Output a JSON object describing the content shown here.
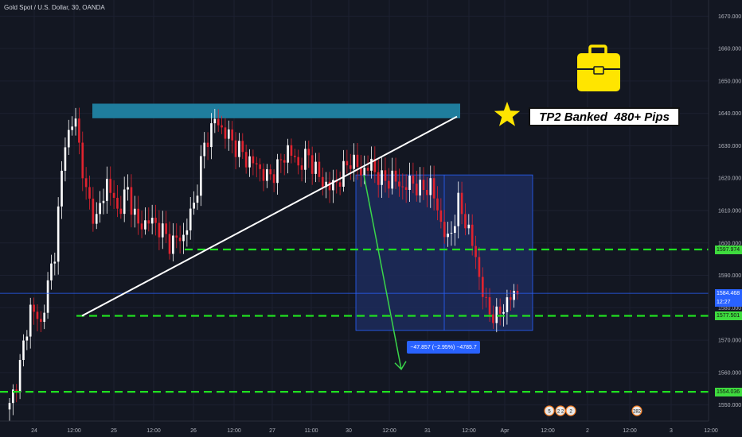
{
  "header": {
    "title": "Gold Spot / U.S. Dollar, 30, OANDA"
  },
  "annotation": {
    "tp_text": "TP2 Banked  480+ Pips",
    "measure_text": "−47.857 (−2.95%) −4785.7"
  },
  "price_labels": [
    {
      "value": 1597.974,
      "text": "1597.974",
      "kind": "green"
    },
    {
      "value": 1584.468,
      "text": "1584.468",
      "kind": "blue"
    },
    {
      "value": 1577.501,
      "text": "1577.501",
      "kind": "green"
    },
    {
      "value": 1554.036,
      "text": "1554.036",
      "kind": "green"
    }
  ],
  "countdown": "12:27",
  "event_badges": [
    {
      "label": "5"
    },
    {
      "label": "2 2"
    },
    {
      "label": "2"
    },
    {
      "label": "282"
    }
  ],
  "colors": {
    "background": "#131722",
    "bull": "#ffffff",
    "bear": "#e0232f",
    "zone": "#1f7d9d",
    "measure_box": "#1d2c5c",
    "support_line": "#20e020",
    "trend_line": "#ffffff",
    "arrow": "#3ad64a",
    "star": "#ffe500",
    "briefcase": "#ffe500"
  },
  "chart_data": {
    "type": "candlestick",
    "symbol": "Gold Spot / U.S. Dollar",
    "timeframe": "30",
    "source": "OANDA",
    "ylim": [
      1545,
      1675
    ],
    "y_ticks": [
      1550,
      1560,
      1570,
      1580,
      1590,
      1600,
      1610,
      1620,
      1630,
      1640,
      1650,
      1660,
      1670
    ],
    "x_ticks": [
      "24",
      "12:00",
      "25",
      "12:00",
      "26",
      "12:00",
      "27",
      "11:00",
      "30",
      "12:00",
      "31",
      "12:00",
      "Apr",
      "12:00",
      "2",
      "12:00",
      "3",
      "12:00"
    ],
    "horizontal_levels": [
      1597.974,
      1577.501,
      1554.036
    ],
    "last_price": 1584.468,
    "resistance_zone": [
      1638.5,
      1643
    ],
    "measured_move": {
      "change": -47.857,
      "percent": -2.95,
      "pips": -4785.7
    },
    "anchors": [
      [
        0,
        1549
      ],
      [
        3,
        1562
      ],
      [
        6,
        1580
      ],
      [
        9,
        1575
      ],
      [
        13,
        1598
      ],
      [
        16,
        1632
      ],
      [
        19,
        1638
      ],
      [
        22,
        1615
      ],
      [
        25,
        1607
      ],
      [
        28,
        1619
      ],
      [
        31,
        1610
      ],
      [
        34,
        1616
      ],
      [
        37,
        1605
      ],
      [
        40,
        1607
      ],
      [
        43,
        1605
      ],
      [
        46,
        1600
      ],
      [
        50,
        1602
      ],
      [
        53,
        1612
      ],
      [
        56,
        1630
      ],
      [
        59,
        1638
      ],
      [
        62,
        1634
      ],
      [
        65,
        1630
      ],
      [
        68,
        1626
      ],
      [
        71,
        1624
      ],
      [
        74,
        1620
      ],
      [
        77,
        1623
      ],
      [
        80,
        1629
      ],
      [
        83,
        1624
      ],
      [
        86,
        1627
      ],
      [
        89,
        1620
      ],
      [
        92,
        1617
      ],
      [
        95,
        1620
      ],
      [
        98,
        1626
      ],
      [
        101,
        1622
      ],
      [
        104,
        1624
      ],
      [
        107,
        1619
      ],
      [
        110,
        1620
      ],
      [
        113,
        1617
      ],
      [
        116,
        1619
      ],
      [
        118,
        1616
      ],
      [
        121,
        1618
      ],
      [
        123,
        1610
      ],
      [
        126,
        1600
      ],
      [
        129,
        1612
      ],
      [
        132,
        1604
      ],
      [
        134,
        1595
      ],
      [
        137,
        1580
      ],
      [
        140,
        1577
      ],
      [
        143,
        1582
      ],
      [
        146,
        1585
      ]
    ]
  }
}
